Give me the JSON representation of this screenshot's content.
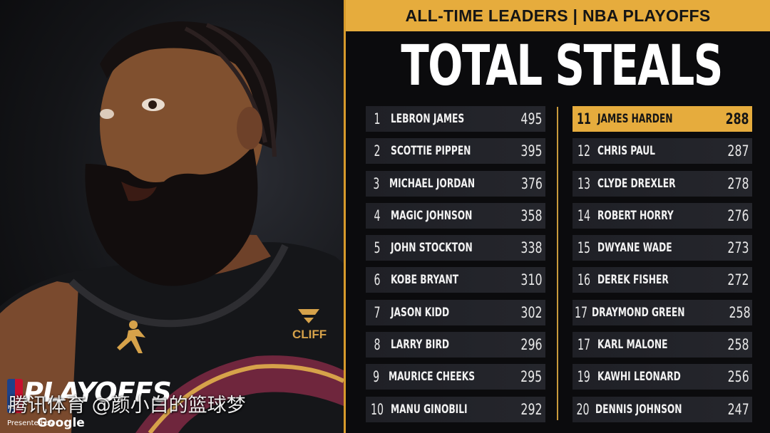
{
  "header": {
    "subtitle": "ALL-TIME LEADERS | NBA PLAYOFFS"
  },
  "title": "TOTAL STEALS",
  "colors": {
    "accent": "#e6ac3d",
    "row_bg": "#22232a",
    "panel_bg": "#0b0b0d"
  },
  "chart_data": {
    "type": "table",
    "title": "TOTAL STEALS",
    "subtitle": "ALL-TIME LEADERS | NBA PLAYOFFS",
    "highlighted_rank_index": 10,
    "rows": [
      {
        "rank": "1",
        "player": "LEBRON JAMES",
        "steals": "495"
      },
      {
        "rank": "2",
        "player": "SCOTTIE PIPPEN",
        "steals": "395"
      },
      {
        "rank": "3",
        "player": "MICHAEL JORDAN",
        "steals": "376"
      },
      {
        "rank": "4",
        "player": "MAGIC JOHNSON",
        "steals": "358"
      },
      {
        "rank": "5",
        "player": "JOHN STOCKTON",
        "steals": "338"
      },
      {
        "rank": "6",
        "player": "KOBE BRYANT",
        "steals": "310"
      },
      {
        "rank": "7",
        "player": "JASON KIDD",
        "steals": "302"
      },
      {
        "rank": "8",
        "player": "LARRY BIRD",
        "steals": "296"
      },
      {
        "rank": "9",
        "player": "MAURICE CHEEKS",
        "steals": "295"
      },
      {
        "rank": "10",
        "player": "MANU GINOBILI",
        "steals": "292"
      },
      {
        "rank": "11",
        "player": "JAMES HARDEN",
        "steals": "288"
      },
      {
        "rank": "12",
        "player": "CHRIS PAUL",
        "steals": "287"
      },
      {
        "rank": "13",
        "player": "CLYDE DREXLER",
        "steals": "278"
      },
      {
        "rank": "14",
        "player": "ROBERT HORRY",
        "steals": "276"
      },
      {
        "rank": "15",
        "player": "DWYANE WADE",
        "steals": "273"
      },
      {
        "rank": "16",
        "player": "DEREK FISHER",
        "steals": "272"
      },
      {
        "rank": "17",
        "player": "DRAYMOND GREEN",
        "steals": "258"
      },
      {
        "rank": "17",
        "player": "KARL MALONE",
        "steals": "258"
      },
      {
        "rank": "19",
        "player": "KAWHI LEONARD",
        "steals": "256"
      },
      {
        "rank": "20",
        "player": "DENNIS JOHNSON",
        "steals": "247"
      }
    ]
  },
  "branding": {
    "playoffs_word": "PLAYOFFS",
    "logo_small": "NBA",
    "presented_by": "Presented by",
    "sponsor": "Google",
    "jersey_sponsor": "CLIFF",
    "watermark": "腾讯体育 @颜小白的篮球梦"
  }
}
